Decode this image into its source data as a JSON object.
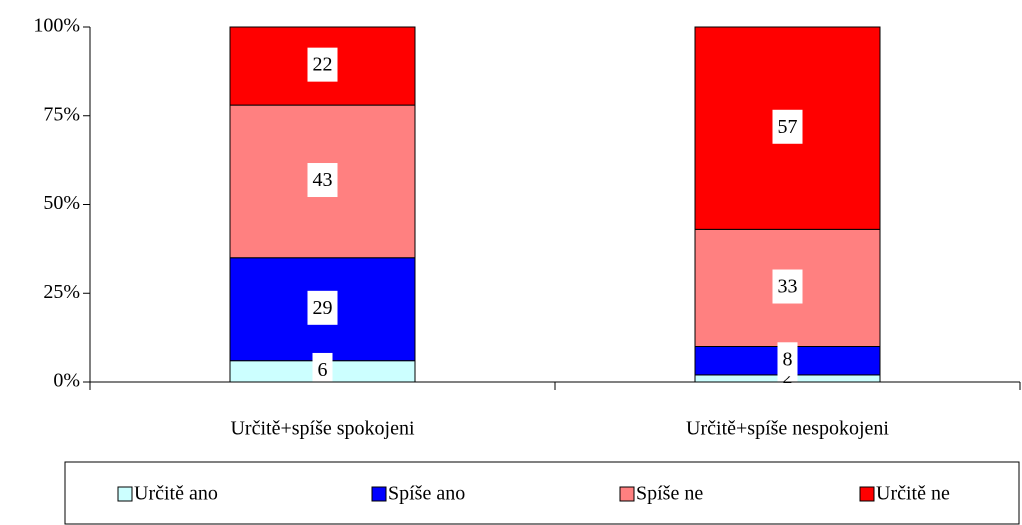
{
  "chart_data": {
    "type": "stacked_bar",
    "categories": [
      "Určitě+spíše spokojeni",
      "Určitě+spíše nespokojeni"
    ],
    "series": [
      {
        "name": "Určitě ano",
        "color": "#ccffff",
        "values": [
          6,
          2
        ]
      },
      {
        "name": "Spíše ano",
        "color": "#0000ff",
        "values": [
          29,
          8
        ]
      },
      {
        "name": "Spíše ne",
        "color": "#ff8080",
        "values": [
          43,
          33
        ]
      },
      {
        "name": "Určitě ne",
        "color": "#ff0000",
        "values": [
          22,
          57
        ]
      }
    ],
    "ylim": [
      0,
      100
    ],
    "yticks": [
      {
        "value": 0,
        "label": "0%"
      },
      {
        "value": 25,
        "label": "25%"
      },
      {
        "value": 50,
        "label": "50%"
      },
      {
        "value": 75,
        "label": "75%"
      },
      {
        "value": 100,
        "label": "100%"
      }
    ],
    "legend": "bottom"
  }
}
